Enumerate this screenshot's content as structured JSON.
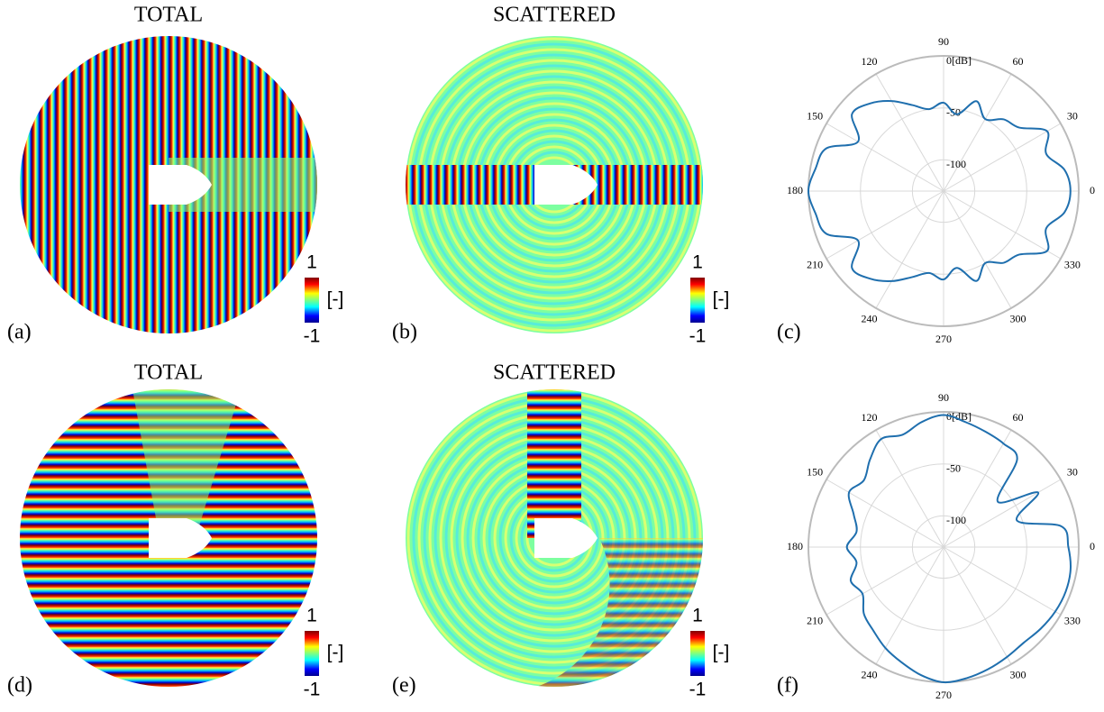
{
  "chart_data": [
    {
      "type": "field",
      "title": "TOTAL",
      "panel": "(a)",
      "clim": [
        -1,
        1
      ],
      "cticks": [
        -1,
        1
      ],
      "colorbar_label": "[-]"
    },
    {
      "type": "field",
      "title": "SCATTERED",
      "panel": "(b)",
      "clim": [
        -1,
        1
      ],
      "cticks": [
        -1,
        1
      ],
      "colorbar_label": "[-]"
    },
    {
      "type": "polar",
      "panel": "(c)",
      "color": "#1f6fae",
      "theta": [
        0,
        10,
        20,
        30,
        40,
        50,
        60,
        70,
        80,
        90,
        100,
        110,
        120,
        130,
        140,
        150,
        160,
        170,
        180,
        190,
        200,
        210,
        220,
        230,
        240,
        250,
        260,
        270,
        280,
        290,
        300,
        310,
        320,
        330,
        340,
        350
      ],
      "values": [
        -8,
        -12,
        -25,
        -15,
        -35,
        -40,
        -50,
        -38,
        -55,
        -45,
        -50,
        -42,
        -30,
        -20,
        -15,
        -35,
        -10,
        -5,
        0,
        -5,
        -10,
        -35,
        -15,
        -20,
        -30,
        -42,
        -50,
        -45,
        -55,
        -38,
        -50,
        -40,
        -35,
        -15,
        -25,
        -12
      ],
      "rlim": [
        -130,
        0
      ],
      "rticks": [
        -100,
        -50,
        {
          "value": 0,
          "label": "0[dB]"
        }
      ],
      "thetaticks": [
        0,
        30,
        60,
        90,
        120,
        150,
        180,
        210,
        240,
        270,
        300,
        330
      ]
    },
    {
      "type": "field",
      "title": "TOTAL",
      "panel": "(d)",
      "clim": [
        -1,
        1
      ],
      "cticks": [
        -1,
        1
      ],
      "colorbar_label": "[-]"
    },
    {
      "type": "field",
      "title": "SCATTERED",
      "panel": "(e)",
      "clim": [
        -1,
        1
      ],
      "cticks": [
        -1,
        1
      ],
      "colorbar_label": "[-]"
    },
    {
      "type": "polar",
      "panel": "(f)",
      "color": "#1f6fae",
      "theta": [
        0,
        10,
        20,
        30,
        40,
        50,
        60,
        70,
        80,
        90,
        100,
        110,
        120,
        130,
        140,
        150,
        160,
        170,
        180,
        190,
        200,
        210,
        220,
        230,
        240,
        250,
        260,
        270,
        280,
        290,
        300,
        310,
        320,
        330,
        340,
        350
      ],
      "values": [
        -10,
        -15,
        -55,
        -25,
        -62,
        -20,
        -15,
        -12,
        -8,
        -3,
        -8,
        -15,
        -10,
        -20,
        -30,
        -25,
        -38,
        -45,
        -37,
        -45,
        -35,
        -40,
        -30,
        -25,
        -18,
        -12,
        -5,
        0,
        -2,
        -5,
        -8,
        -10,
        -8,
        -6,
        -5,
        -6
      ],
      "rlim": [
        -130,
        0
      ],
      "rticks": [
        -100,
        -50,
        {
          "value": 0,
          "label": "0[dB]"
        }
      ],
      "thetaticks": [
        0,
        30,
        60,
        90,
        120,
        150,
        180,
        210,
        240,
        270,
        300,
        330
      ]
    }
  ]
}
